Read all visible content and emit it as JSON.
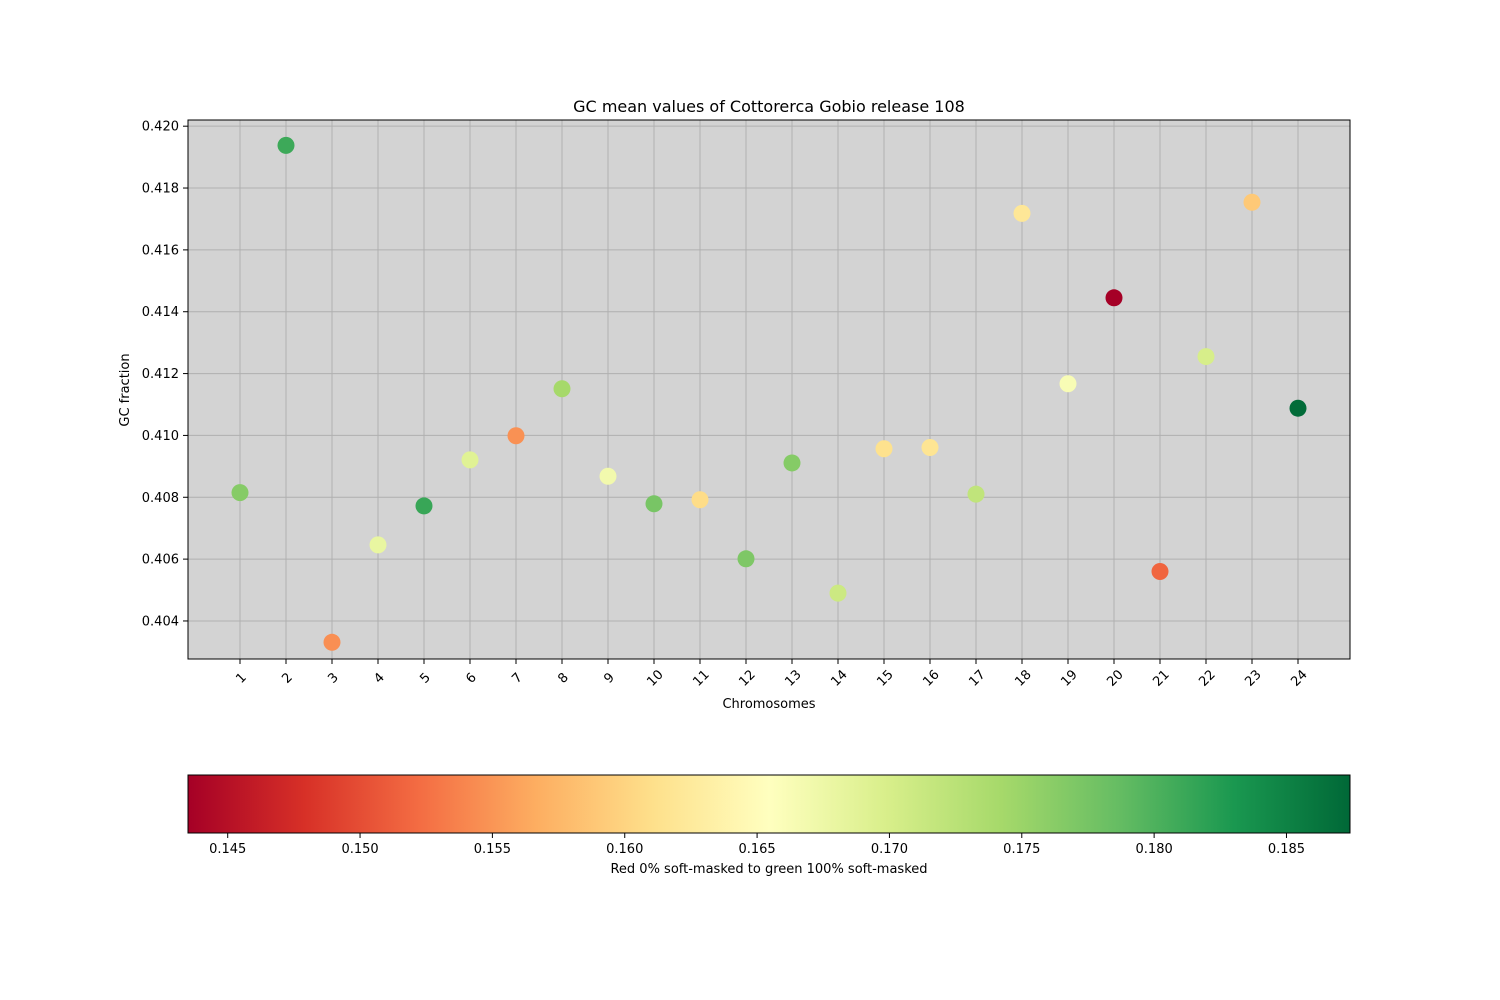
{
  "chart_data": {
    "type": "scatter",
    "title": "GC mean values of Cottorerca Gobio release 108",
    "xlabel": "Chromosomes",
    "ylabel": "GC fraction",
    "categories": [
      "1",
      "2",
      "3",
      "4",
      "5",
      "6",
      "7",
      "8",
      "9",
      "10",
      "11",
      "12",
      "13",
      "14",
      "15",
      "16",
      "17",
      "18",
      "19",
      "20",
      "21",
      "22",
      "23",
      "24"
    ],
    "values": [
      0.40815,
      0.41938,
      0.40331,
      0.40646,
      0.40772,
      0.40921,
      0.40999,
      0.41151,
      0.40868,
      0.40779,
      0.40792,
      0.40601,
      0.40911,
      0.4049,
      0.40957,
      0.40961,
      0.4081,
      0.41718,
      0.41167,
      0.41445,
      0.4056,
      0.41255,
      0.41754,
      0.41088
    ],
    "color_values": [
      0.1764,
      0.181,
      0.1546,
      0.168,
      0.1813,
      0.169,
      0.1547,
      0.1742,
      0.167,
      0.1774,
      0.1608,
      0.177,
      0.1765,
      0.171,
      0.1613,
      0.1617,
      0.172,
      0.1621,
      0.1663,
      0.1435,
      0.1517,
      0.17,
      0.159,
      0.187
    ],
    "ylim": [
      0.40277,
      0.4202
    ],
    "yticks": [
      "0.404",
      "0.406",
      "0.408",
      "0.410",
      "0.412",
      "0.414",
      "0.416",
      "0.418",
      "0.420"
    ],
    "grid": true,
    "colorbar": {
      "label": "Red 0% soft-masked to green 100% soft-masked",
      "range": [
        0.1435,
        0.1874
      ],
      "ticks": [
        "0.145",
        "0.150",
        "0.155",
        "0.160",
        "0.165",
        "0.170",
        "0.175",
        "0.180",
        "0.185"
      ],
      "colormap": "RdYlGn",
      "stops": [
        "#a50026",
        "#d73027",
        "#f46d43",
        "#fdae61",
        "#fee08b",
        "#ffffbf",
        "#d9ef8b",
        "#a6d96a",
        "#66bd63",
        "#1a9850",
        "#006837"
      ]
    },
    "plot_background": "#d3d3d3"
  }
}
